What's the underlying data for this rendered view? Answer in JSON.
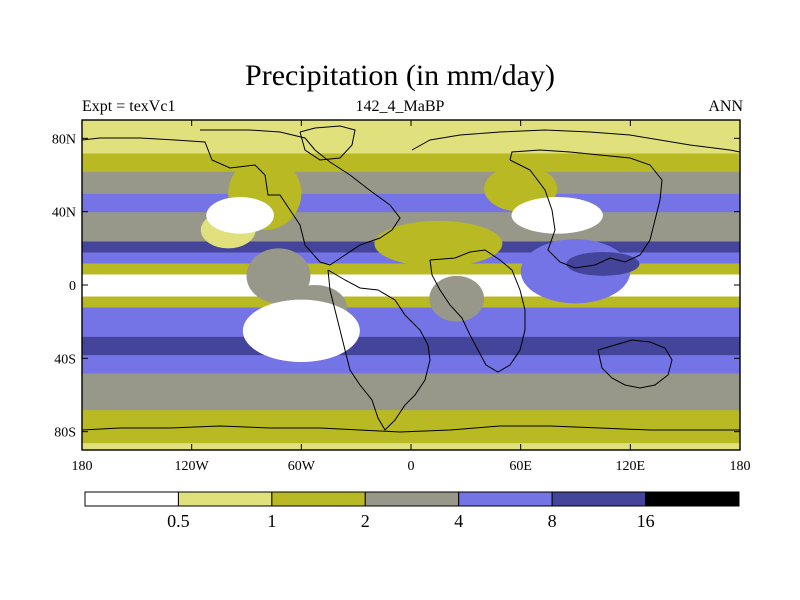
{
  "chart_data": {
    "type": "heatmap",
    "title": "Precipitation (in mm/day)",
    "left_label": "Expt = texVc1",
    "center_label": "142_4_MaBP",
    "right_label": "ANN",
    "projection": "cylindrical-equidistant",
    "xlim": [
      -180,
      180
    ],
    "ylim": [
      -90,
      90
    ],
    "x_ticks": [
      {
        "value": -180,
        "label": "180"
      },
      {
        "value": -120,
        "label": "120W"
      },
      {
        "value": -60,
        "label": "60W"
      },
      {
        "value": 0,
        "label": "0"
      },
      {
        "value": 60,
        "label": "60E"
      },
      {
        "value": 120,
        "label": "120E"
      },
      {
        "value": 180,
        "label": "180"
      }
    ],
    "y_ticks": [
      {
        "value": 80,
        "label": "80N"
      },
      {
        "value": 40,
        "label": "40N"
      },
      {
        "value": 0,
        "label": "0"
      },
      {
        "value": -40,
        "label": "40S"
      },
      {
        "value": -80,
        "label": "80S"
      }
    ],
    "colorbar": {
      "levels": [
        "0.5",
        "1",
        "2",
        "4",
        "8",
        "16"
      ],
      "colors": [
        "#ffffff",
        "#e0e07c",
        "#b9b924",
        "#98988a",
        "#7474e6",
        "#44449a",
        "#000000"
      ]
    },
    "latitude_bands": [
      {
        "lat_range": [
          -90,
          -86
        ],
        "level_index": 1
      },
      {
        "lat_range": [
          -86,
          -68
        ],
        "level_index": 2
      },
      {
        "lat_range": [
          -68,
          -48
        ],
        "level_index": 3
      },
      {
        "lat_range": [
          -48,
          -38
        ],
        "level_index": 4
      },
      {
        "lat_range": [
          -38,
          -28
        ],
        "level_index": 5
      },
      {
        "lat_range": [
          -28,
          -12
        ],
        "level_index": 4
      },
      {
        "lat_range": [
          -12,
          -6
        ],
        "level_index": 2
      },
      {
        "lat_range": [
          -6,
          6
        ],
        "level_index": 0
      },
      {
        "lat_range": [
          6,
          12
        ],
        "level_index": 2
      },
      {
        "lat_range": [
          12,
          18
        ],
        "level_index": 4
      },
      {
        "lat_range": [
          18,
          24
        ],
        "level_index": 5
      },
      {
        "lat_range": [
          24,
          40
        ],
        "level_index": 3
      },
      {
        "lat_range": [
          40,
          50
        ],
        "level_index": 4
      },
      {
        "lat_range": [
          50,
          62
        ],
        "level_index": 3
      },
      {
        "lat_range": [
          62,
          72
        ],
        "level_index": 2
      },
      {
        "lat_range": [
          72,
          80
        ],
        "level_index": 1
      },
      {
        "lat_range": [
          80,
          90
        ],
        "level_index": 1
      }
    ],
    "regions": [
      {
        "lon_range": [
          -115,
          -85
        ],
        "lat_range": [
          20,
          40
        ],
        "level_index": 1
      },
      {
        "lon_range": [
          -100,
          -60
        ],
        "lat_range": [
          30,
          70
        ],
        "level_index": 2
      },
      {
        "lon_range": [
          -90,
          -55
        ],
        "lat_range": [
          -10,
          20
        ],
        "level_index": 3
      },
      {
        "lon_range": [
          -20,
          50
        ],
        "lat_range": [
          10,
          35
        ],
        "level_index": 2
      },
      {
        "lon_range": [
          -70,
          -35
        ],
        "lat_range": [
          -25,
          0
        ],
        "level_index": 3
      },
      {
        "lon_range": [
          10,
          40
        ],
        "lat_range": [
          -20,
          5
        ],
        "level_index": 3
      },
      {
        "lon_range": [
          40,
          80
        ],
        "lat_range": [
          40,
          65
        ],
        "level_index": 2
      },
      {
        "lon_range": [
          60,
          120
        ],
        "lat_range": [
          -10,
          25
        ],
        "level_index": 4
      },
      {
        "lon_range": [
          85,
          125
        ],
        "lat_range": [
          5,
          18
        ],
        "level_index": 5
      },
      {
        "lon_range": [
          -112,
          -75
        ],
        "lat_range": [
          28,
          48
        ],
        "level_index": 0
      },
      {
        "lon_range": [
          55,
          105
        ],
        "lat_range": [
          28,
          48
        ],
        "level_index": 0
      },
      {
        "lon_range": [
          -92,
          -28
        ],
        "lat_range": [
          -42,
          -8
        ],
        "level_index": 0
      },
      {
        "lon_range": [
          150,
          180
        ],
        "lat_range": [
          -4,
          4
        ],
        "level_index": 0
      }
    ]
  }
}
